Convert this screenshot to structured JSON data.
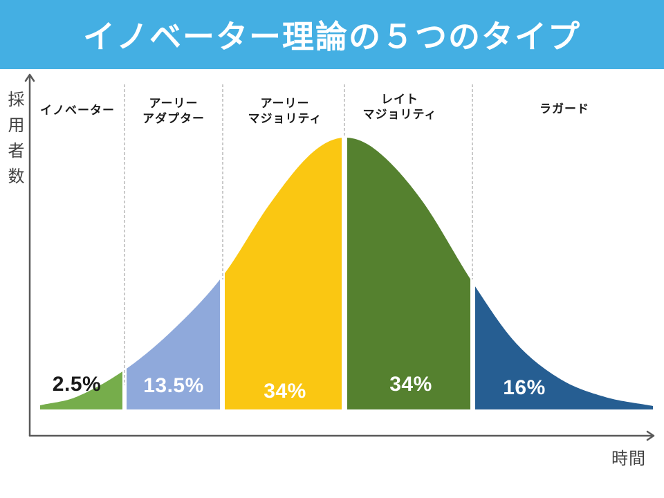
{
  "header": {
    "title": "イノベーター理論の５つのタイプ",
    "bg_color": "#44AFE3",
    "text_color": "#FFFFFF"
  },
  "axes": {
    "y_label": "採用者数",
    "x_label": "時間",
    "line_color": "#595959",
    "divider_line_color": "#ADADAD"
  },
  "chart_data": {
    "type": "area",
    "title": "イノベーター理論の５つのタイプ",
    "xlabel": "時間",
    "ylabel": "採用者数",
    "description": "normal-distribution bell curve of adopters over time, split into 5 adopter categories separated by dashed divider lines",
    "legend_position": "none",
    "grid": false,
    "categories": [
      "イノベーター",
      "アーリーアダプター",
      "アーリーマジョリティ",
      "レイトマジョリティ",
      "ラガード"
    ],
    "values": [
      2.5,
      13.5,
      34,
      34,
      16
    ],
    "segments": [
      {
        "name": "イノベーター",
        "label": "イノベーター",
        "pct": "2.5%",
        "value": 2.5,
        "color": "#76AD4B",
        "pct_color": "#1A1A1A"
      },
      {
        "name": "アーリーアダプター",
        "label": "アーリー\nアダプター",
        "pct": "13.5%",
        "value": 13.5,
        "color": "#8FA9DB",
        "pct_color": "#FFFFFF"
      },
      {
        "name": "アーリーマジョリティ",
        "label": "アーリー\nマジョリティ",
        "pct": "34%",
        "value": 34,
        "color": "#FAC712",
        "pct_color": "#FFFFFF"
      },
      {
        "name": "レイトマジョリティ",
        "label": "レイト\nマジョリティ",
        "pct": "34%",
        "value": 34,
        "color": "#55812F",
        "pct_color": "#FFFFFF"
      },
      {
        "name": "ラガード",
        "label": "ラガード",
        "pct": "16%",
        "value": 16,
        "color": "#265E92",
        "pct_color": "#FFFFFF"
      }
    ]
  }
}
